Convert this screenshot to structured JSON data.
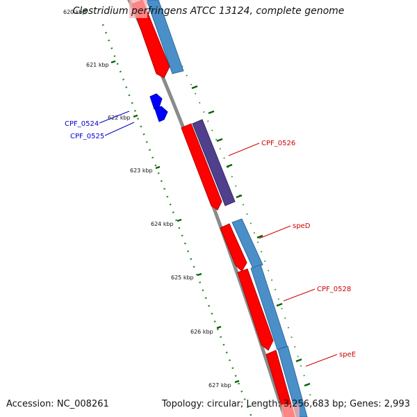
{
  "header": {
    "title": "Clostridium perfringens ATCC 13124, complete genome"
  },
  "footer": {
    "accession": "Accession: NC_008261",
    "topology": "Topology: circular; Length: 3,256,683 bp; Genes: 2,993"
  },
  "scale": {
    "labels": [
      "620 kbp",
      "621 kbp",
      "622 kbp",
      "623 kbp",
      "624 kbp",
      "625 kbp",
      "626 kbp",
      "627 kbp"
    ]
  },
  "genes": [
    {
      "label": "CPF_0524",
      "color": "#0000cc"
    },
    {
      "label": "CPF_0525",
      "color": "#0000cc"
    },
    {
      "label": "CPF_0526",
      "color": "#cc0000"
    },
    {
      "label": "speD",
      "color": "#cc0000"
    },
    {
      "label": "CPF_0528",
      "color": "#cc0000"
    },
    {
      "label": "speE",
      "color": "#cc0000"
    }
  ],
  "colors": {
    "backbone": "#8a8a8a",
    "gene_red": "#ff0000",
    "gene_blue": "#0000ff",
    "cog_steelblue": "#4a8fc8",
    "cog_purple": "#4f3f8c",
    "tick_green": "#006400",
    "label_blue": "#0000cc",
    "label_red": "#cc0000"
  }
}
